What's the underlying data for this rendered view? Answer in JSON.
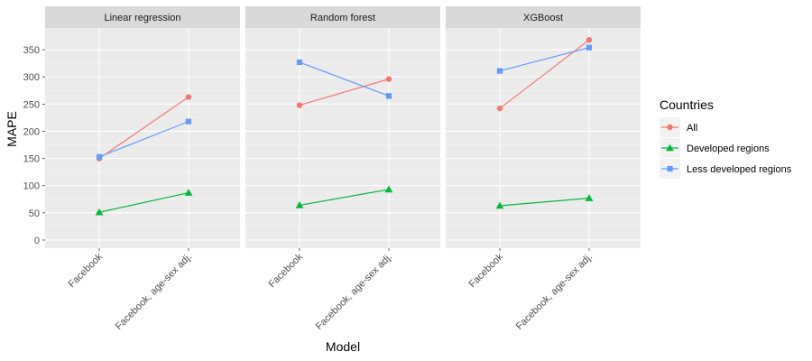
{
  "chart_data": {
    "type": "line",
    "x_title": "Model",
    "y_title": "MAPE",
    "categories": [
      "Facebook",
      "Facebook, age-sex adj."
    ],
    "y_ticks": [
      0,
      50,
      100,
      150,
      200,
      250,
      300,
      350
    ],
    "ylim": [
      -15,
      390
    ],
    "grid": true,
    "legend": {
      "title": "Countries",
      "placement": "right",
      "entries": [
        "All",
        "Developed regions",
        "Less developed regions"
      ]
    },
    "colors": {
      "All": "#F8766D",
      "Developed regions": "#00BA38",
      "Less developed regions": "#619CFF"
    },
    "markers": {
      "All": "circle",
      "Developed regions": "triangle",
      "Less developed regions": "square"
    },
    "panels": [
      {
        "title": "Linear regression",
        "series": [
          {
            "name": "All",
            "values": [
              150,
              263
            ]
          },
          {
            "name": "Developed regions",
            "values": [
              51,
              87
            ]
          },
          {
            "name": "Less developed regions",
            "values": [
              153,
              218
            ]
          }
        ]
      },
      {
        "title": "Random forest",
        "series": [
          {
            "name": "All",
            "values": [
              248,
              296
            ]
          },
          {
            "name": "Developed regions",
            "values": [
              64,
              93
            ]
          },
          {
            "name": "Less developed regions",
            "values": [
              327,
              265
            ]
          }
        ]
      },
      {
        "title": "XGBoost",
        "series": [
          {
            "name": "All",
            "values": [
              242,
              368
            ]
          },
          {
            "name": "Developed regions",
            "values": [
              63,
              77
            ]
          },
          {
            "name": "Less developed regions",
            "values": [
              311,
              354
            ]
          }
        ]
      }
    ]
  }
}
